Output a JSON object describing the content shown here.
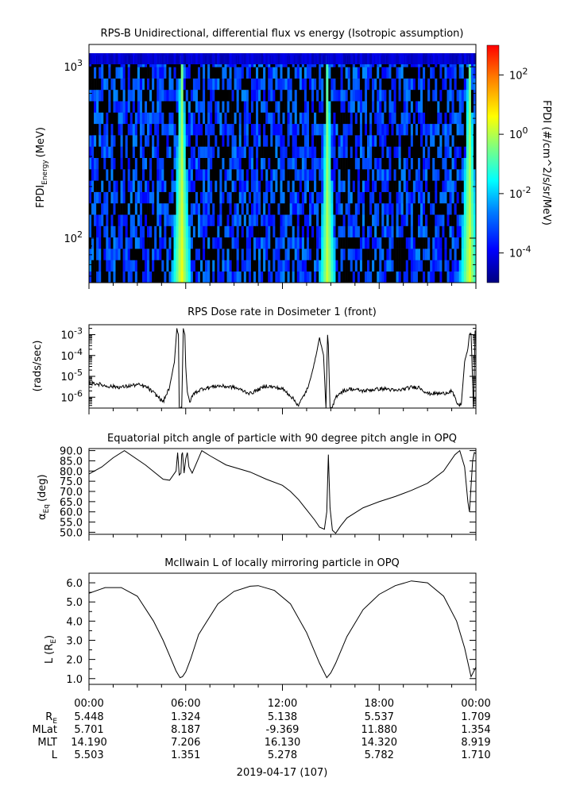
{
  "chart_data": [
    {
      "type": "heatmap",
      "title": "RPS-B  Unidirectional, differential flux vs energy (Isotropic assumption)",
      "ylabel_main": "FPDI",
      "ylabel_sub": "Energy",
      "ylabel_units": "(MeV)",
      "y_scale": "log",
      "ylim": [
        55,
        1350
      ],
      "y_ticks": [
        {
          "value": 100,
          "base": "10",
          "exp": "2"
        },
        {
          "value": 1000,
          "base": "10",
          "exp": "3"
        }
      ],
      "x_range_hours": [
        0,
        24
      ],
      "colorbar": {
        "label": "FPDI (#/cm^2/s/sr/MeV)",
        "scale": "log",
        "range_log10": [
          -5,
          3
        ],
        "ticks": [
          {
            "value": -4,
            "base": "10",
            "exp": "-4"
          },
          {
            "value": -2,
            "base": "10",
            "exp": "-2"
          },
          {
            "value": 0,
            "base": "10",
            "exp": "0"
          },
          {
            "value": 2,
            "base": "10",
            "exp": "2"
          }
        ],
        "colors": [
          "#00007f",
          "#0000ff",
          "#007fff",
          "#00ffff",
          "#7fff7f",
          "#ffff00",
          "#ff7f00",
          "#ff0000"
        ]
      },
      "background_log10": -3.2,
      "top_row_log10": -4.3,
      "features": [
        {
          "hour": 5.75,
          "peak_log10": 0.6,
          "width_h": 0.75
        },
        {
          "hour": 14.8,
          "peak_log10": 0.3,
          "width_h": 0.7
        },
        {
          "hour": 23.6,
          "peak_log10": 0.4,
          "width_h": 0.8
        }
      ]
    },
    {
      "type": "line",
      "title": "RPS  Dose rate in Dosimeter 1 (front)",
      "ylabel": "(rads/sec)",
      "y_scale": "log",
      "ylim": [
        3e-07,
        0.003
      ],
      "y_ticks": [
        {
          "value": 1e-06,
          "base": "10",
          "exp": "-6"
        },
        {
          "value": 1e-05,
          "base": "10",
          "exp": "-5"
        },
        {
          "value": 0.0001,
          "base": "10",
          "exp": "-4"
        },
        {
          "value": 0.001,
          "base": "10",
          "exp": "-3"
        }
      ],
      "x_hours": [
        0,
        0.5,
        1,
        2,
        3,
        3.6,
        4.2,
        4.6,
        5.0,
        5.3,
        5.45,
        5.55,
        5.6,
        5.65,
        5.75,
        5.85,
        5.95,
        6.0,
        6.1,
        6.25,
        6.5,
        7.0,
        7.5,
        8.0,
        9.0,
        10.0,
        11.0,
        12.0,
        12.5,
        13.0,
        13.6,
        14.0,
        14.3,
        14.55,
        14.7,
        14.8,
        14.85,
        14.95,
        15.1,
        15.3,
        15.5,
        15.8,
        16.2,
        17.0,
        18.0,
        18.5,
        19.0,
        19.6,
        20.0,
        20.5,
        21.0,
        21.5,
        22.0,
        22.5,
        22.9,
        23.1,
        23.3,
        23.5,
        23.6,
        23.7,
        23.85,
        23.95,
        24.0
      ],
      "y_values": [
        4.5e-06,
        4.5e-06,
        3.5e-06,
        3e-06,
        4e-06,
        3e-06,
        1.2e-06,
        6e-07,
        3e-06,
        5e-05,
        0.002,
        0.001,
        3e-07,
        3e-07,
        3e-07,
        0.002,
        0.001,
        3e-05,
        1.5e-06,
        6e-07,
        1.5e-06,
        2.5e-06,
        3e-06,
        3.5e-06,
        3e-06,
        1.5e-06,
        3.5e-06,
        2.5e-06,
        1.2e-06,
        4e-07,
        3e-06,
        5e-05,
        0.0007,
        0.0001,
        3e-07,
        0.001,
        0.0003,
        3e-07,
        3e-07,
        1e-06,
        1.5e-06,
        2e-06,
        2.5e-06,
        2e-06,
        2.5e-06,
        2.5e-06,
        2e-06,
        2.5e-06,
        3e-06,
        3e-06,
        1.5e-06,
        1.5e-06,
        1.5e-06,
        2e-06,
        4e-07,
        5e-07,
        5e-05,
        0.0002,
        0.001,
        0.0012,
        3e-07,
        0.0015,
        0.0015
      ]
    },
    {
      "type": "line",
      "title": "Equatorial pitch angle of particle with 90 degree pitch angle in OPQ",
      "ylabel_main": "α",
      "ylabel_sub": "Eq",
      "ylabel_units": "(deg)",
      "ylim": [
        49,
        91
      ],
      "y_ticks": [
        50,
        55,
        60,
        65,
        70,
        75,
        80,
        85,
        90
      ],
      "x_hours": [
        0,
        0.8,
        1.5,
        2.2,
        3.5,
        4.6,
        5.0,
        5.4,
        5.5,
        5.6,
        5.7,
        5.75,
        5.8,
        5.9,
        6.0,
        6.1,
        6.2,
        6.4,
        7.0,
        7.5,
        8.5,
        10.0,
        11.0,
        12.0,
        12.5,
        13.0,
        13.5,
        14.0,
        14.3,
        14.6,
        14.75,
        14.85,
        14.95,
        15.1,
        15.3,
        15.6,
        16.0,
        17.0,
        18.0,
        19.0,
        20.0,
        21.0,
        22.0,
        22.7,
        23.0,
        23.3,
        23.5,
        23.6,
        23.8,
        23.9,
        24.0
      ],
      "y_values": [
        78.5,
        82,
        86.5,
        90,
        83,
        76,
        75.5,
        80,
        89,
        78,
        79,
        88,
        89,
        79,
        86,
        89,
        82,
        79,
        90,
        87.5,
        83,
        79.5,
        76,
        73,
        70,
        66,
        61,
        56,
        52.5,
        51.5,
        60,
        88,
        62,
        51,
        49.5,
        53,
        57,
        62,
        65,
        67.5,
        70.5,
        74,
        80,
        88,
        90,
        82,
        65,
        60,
        85,
        89,
        88.5
      ]
    },
    {
      "type": "line",
      "title": "McIlwain L of locally mirroring particle in OPQ",
      "ylabel_main": "L",
      "ylabel_sub": "E",
      "ylabel_units": "(R",
      "ylim": [
        0.7,
        6.5
      ],
      "y_ticks": [
        1,
        2,
        3,
        4,
        5,
        6
      ],
      "x_hours": [
        0,
        1,
        2,
        3,
        4,
        4.6,
        5,
        5.4,
        5.65,
        5.8,
        6.0,
        6.3,
        6.8,
        8,
        9,
        10,
        10.5,
        11.5,
        12.5,
        13.5,
        14.3,
        14.75,
        15.0,
        15.3,
        16,
        17,
        18,
        19,
        20,
        21,
        22,
        22.8,
        23.3,
        23.7,
        24
      ],
      "y_values": [
        5.45,
        5.75,
        5.75,
        5.3,
        4.0,
        3.0,
        2.2,
        1.4,
        1.05,
        1.1,
        1.35,
        2.0,
        3.3,
        4.9,
        5.55,
        5.82,
        5.85,
        5.6,
        4.9,
        3.4,
        1.8,
        1.05,
        1.3,
        1.8,
        3.2,
        4.6,
        5.4,
        5.85,
        6.1,
        6.0,
        5.3,
        4.0,
        2.6,
        1.1,
        1.6
      ]
    }
  ],
  "x_axis": {
    "tick_hours": [
      0,
      6,
      12,
      18,
      24
    ],
    "tick_labels": [
      "00:00",
      "06:00",
      "12:00",
      "18:00",
      "00:00"
    ],
    "minor_every_hours": 1.5
  },
  "ephemeris": {
    "rows": [
      {
        "label": "R",
        "label_sub": "E",
        "values": [
          "5.448",
          "1.324",
          "5.138",
          "5.537",
          "1.709"
        ]
      },
      {
        "label": "MLat",
        "values": [
          "5.701",
          "8.187",
          "-9.369",
          "11.880",
          "1.354"
        ]
      },
      {
        "label": "MLT",
        "values": [
          "14.190",
          "7.206",
          "16.130",
          "14.320",
          "8.919"
        ]
      },
      {
        "label": "L",
        "values": [
          "5.503",
          "1.351",
          "5.278",
          "5.782",
          "1.710"
        ]
      }
    ]
  },
  "date_label": "2019-04-17 (107)"
}
